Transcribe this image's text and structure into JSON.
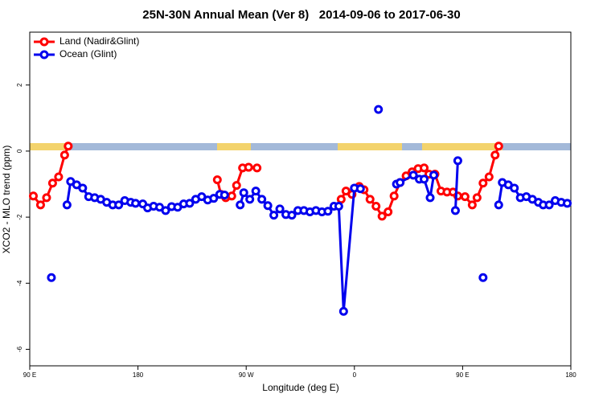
{
  "chart_data": {
    "type": "line",
    "title": "25N-30N Annual Mean (Ver 8)   2014-09-06 to 2017-06-30",
    "x_label": "Longitude (deg E)",
    "y_label": "XCO2 - MLO trend (ppm)",
    "xlim": [
      90,
      540
    ],
    "xticks": [
      {
        "value": 90,
        "label": "90 E"
      },
      {
        "value": 180,
        "label": "180"
      },
      {
        "value": 270,
        "label": "90 W"
      },
      {
        "value": 360,
        "label": "0"
      },
      {
        "value": 450,
        "label": "90 E"
      },
      {
        "value": 540,
        "label": "180"
      }
    ],
    "ylim": [
      -6.5,
      3.6
    ],
    "yticks": [
      -6,
      -4,
      -2,
      0,
      2
    ],
    "legend": "top-left",
    "series": [
      {
        "name": "Land (Nadir&Glint)",
        "color": "#ff0000",
        "x": [
          93,
          99,
          104,
          109,
          114,
          119,
          122,
          null,
          246,
          249,
          253,
          258,
          262,
          267,
          272,
          279,
          null,
          349,
          353,
          358,
          364,
          368,
          373,
          378,
          383,
          388,
          393,
          398,
          403,
          408,
          413,
          418,
          422,
          427,
          432,
          437,
          442,
          446,
          452,
          458,
          462,
          467,
          472,
          477,
          480
        ],
        "values": [
          -1.36,
          -1.63,
          -1.41,
          -0.97,
          -0.78,
          -0.12,
          0.15,
          null,
          -0.87,
          -1.31,
          -1.41,
          -1.36,
          -1.04,
          -0.51,
          -0.49,
          -0.51,
          null,
          -1.46,
          -1.21,
          -1.31,
          -1.07,
          -1.17,
          -1.46,
          -1.67,
          -1.97,
          -1.84,
          -1.36,
          -0.95,
          -0.75,
          -0.63,
          -0.53,
          -0.51,
          -0.7,
          -0.7,
          -1.21,
          -1.24,
          -1.24,
          -1.36,
          -1.38,
          -1.63,
          -1.41,
          -0.97,
          -0.78,
          -0.12,
          0.15
        ]
      },
      {
        "name": "Ocean (Glint)",
        "color": "#0000ee",
        "x": [
          108,
          null,
          121,
          124,
          129,
          134,
          139,
          144,
          149,
          154,
          159,
          164,
          169,
          174,
          178,
          184,
          188,
          193,
          198,
          203,
          208,
          213,
          218,
          223,
          228,
          233,
          238,
          243,
          248,
          252,
          null,
          265,
          268,
          273,
          278,
          283,
          288,
          293,
          298,
          303,
          308,
          313,
          318,
          323,
          328,
          333,
          338,
          343,
          347,
          351,
          360,
          365,
          null,
          380,
          null,
          395,
          398,
          409,
          414,
          418,
          423,
          426,
          null,
          444,
          446,
          null,
          467,
          null,
          480,
          483,
          488,
          493,
          498,
          503,
          508,
          513,
          517,
          522,
          527,
          532,
          537
        ],
        "values": [
          -3.83,
          null,
          -1.63,
          -0.92,
          -1.02,
          -1.12,
          -1.38,
          -1.41,
          -1.46,
          -1.55,
          -1.63,
          -1.63,
          -1.5,
          -1.55,
          -1.58,
          -1.6,
          -1.72,
          -1.67,
          -1.7,
          -1.8,
          -1.68,
          -1.7,
          -1.6,
          -1.58,
          -1.46,
          -1.38,
          -1.48,
          -1.43,
          -1.31,
          -1.33,
          null,
          -1.63,
          -1.26,
          -1.46,
          -1.21,
          -1.46,
          -1.65,
          -1.94,
          -1.75,
          -1.92,
          -1.94,
          -1.8,
          -1.8,
          -1.84,
          -1.8,
          -1.84,
          -1.82,
          -1.67,
          -1.67,
          -4.85,
          -1.12,
          -1.14,
          null,
          1.26,
          null,
          -1.0,
          -0.95,
          -0.73,
          -0.85,
          -0.85,
          -1.41,
          -0.73,
          null,
          -1.8,
          -0.29,
          null,
          -3.83,
          null,
          -1.63,
          -0.95,
          -1.02,
          -1.12,
          -1.41,
          -1.38,
          -1.46,
          -1.55,
          -1.63,
          -1.63,
          -1.5,
          -1.55,
          -1.58
        ]
      }
    ]
  }
}
